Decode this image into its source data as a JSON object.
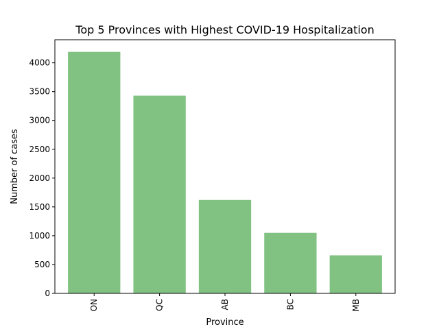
{
  "chart_data": {
    "type": "bar",
    "title": "Top 5 Provinces with Highest COVID-19 Hospitalization",
    "xlabel": "Province",
    "ylabel": "Number of cases",
    "categories": [
      "ON",
      "QC",
      "AB",
      "BC",
      "MB"
    ],
    "values": [
      4190,
      3430,
      1620,
      1050,
      660
    ],
    "ylim": [
      0,
      4400
    ],
    "yticks": [
      0,
      500,
      1000,
      1500,
      2000,
      2500,
      3000,
      3500,
      4000
    ],
    "ytick_labels": [
      "0",
      "500",
      "1000",
      "1500",
      "2000",
      "2500",
      "3000",
      "3500",
      "4000"
    ],
    "x_tick_rotation": "vertical",
    "bar_color": "#81c283",
    "grid": false,
    "legend": "none"
  }
}
